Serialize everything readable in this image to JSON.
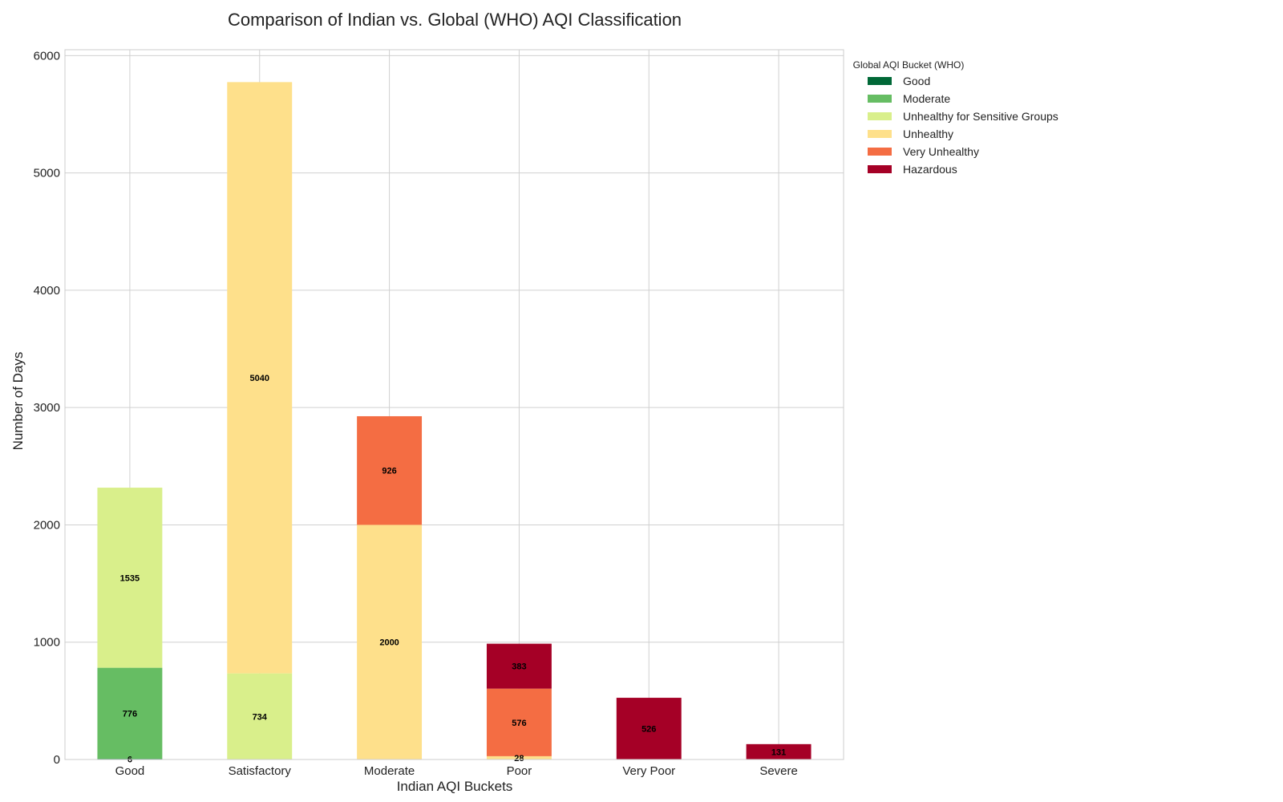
{
  "chart_data": {
    "type": "bar",
    "stacked": true,
    "title": "Comparison of Indian vs. Global (WHO) AQI Classification",
    "xlabel": "Indian AQI Buckets",
    "ylabel": "Number of Days",
    "ylim": [
      0,
      6050
    ],
    "yticks": [
      0,
      1000,
      2000,
      3000,
      4000,
      5000,
      6000
    ],
    "grid": true,
    "legend_title": "Global AQI Bucket (WHO)",
    "legend_position": "outside-top-right",
    "categories": [
      "Good",
      "Satisfactory",
      "Moderate",
      "Poor",
      "Very Poor",
      "Severe"
    ],
    "series": [
      {
        "name": "Good",
        "color": "#006837",
        "values": [
          6,
          0,
          0,
          0,
          0,
          0
        ]
      },
      {
        "name": "Moderate",
        "color": "#66bd63",
        "values": [
          776,
          0,
          0,
          0,
          0,
          0
        ]
      },
      {
        "name": "Unhealthy for Sensitive Groups",
        "color": "#d9ef8b",
        "values": [
          1535,
          734,
          0,
          0,
          0,
          0
        ]
      },
      {
        "name": "Unhealthy",
        "color": "#fee08b",
        "values": [
          0,
          5040,
          2000,
          28,
          0,
          0
        ]
      },
      {
        "name": "Very Unhealthy",
        "color": "#f46d43",
        "values": [
          0,
          0,
          926,
          576,
          0,
          0
        ]
      },
      {
        "name": "Hazardous",
        "color": "#a50026",
        "values": [
          0,
          0,
          0,
          383,
          526,
          131
        ]
      }
    ]
  }
}
